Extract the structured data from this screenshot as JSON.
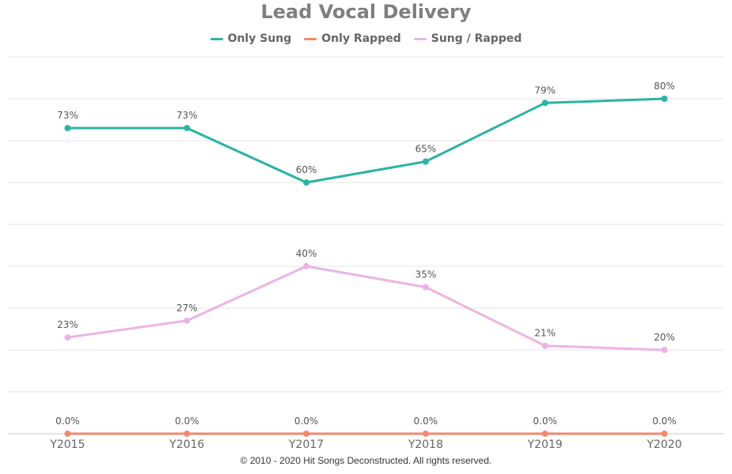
{
  "chart_data": {
    "type": "line",
    "title": "Lead Vocal Delivery",
    "categories": [
      "Y2015",
      "Y2016",
      "Y2017",
      "Y2018",
      "Y2019",
      "Y2020"
    ],
    "ylim": [
      0,
      90
    ],
    "grid": true,
    "legend_position": "top-center",
    "series": [
      {
        "name": "Only Sung",
        "color": "#2bb3a4",
        "values": [
          73,
          73,
          60,
          65,
          79,
          80
        ],
        "labels": [
          "73%",
          "73%",
          "60%",
          "65%",
          "79%",
          "80%"
        ]
      },
      {
        "name": "Only Rapped",
        "color": "#f08a6e",
        "values": [
          0,
          0,
          0,
          0,
          0,
          0
        ],
        "labels": [
          "0.0%",
          "0.0%",
          "0.0%",
          "0.0%",
          "0.0%",
          "0.0%"
        ]
      },
      {
        "name": "Sung / Rapped",
        "color": "#ebb4e6",
        "values": [
          23,
          27,
          40,
          35,
          21,
          20
        ],
        "labels": [
          "23%",
          "27%",
          "40%",
          "35%",
          "21%",
          "20%"
        ]
      }
    ]
  },
  "footer": {
    "copyright": "© 2010 - 2020 Hit Songs Deconstructed. All rights reserved."
  }
}
